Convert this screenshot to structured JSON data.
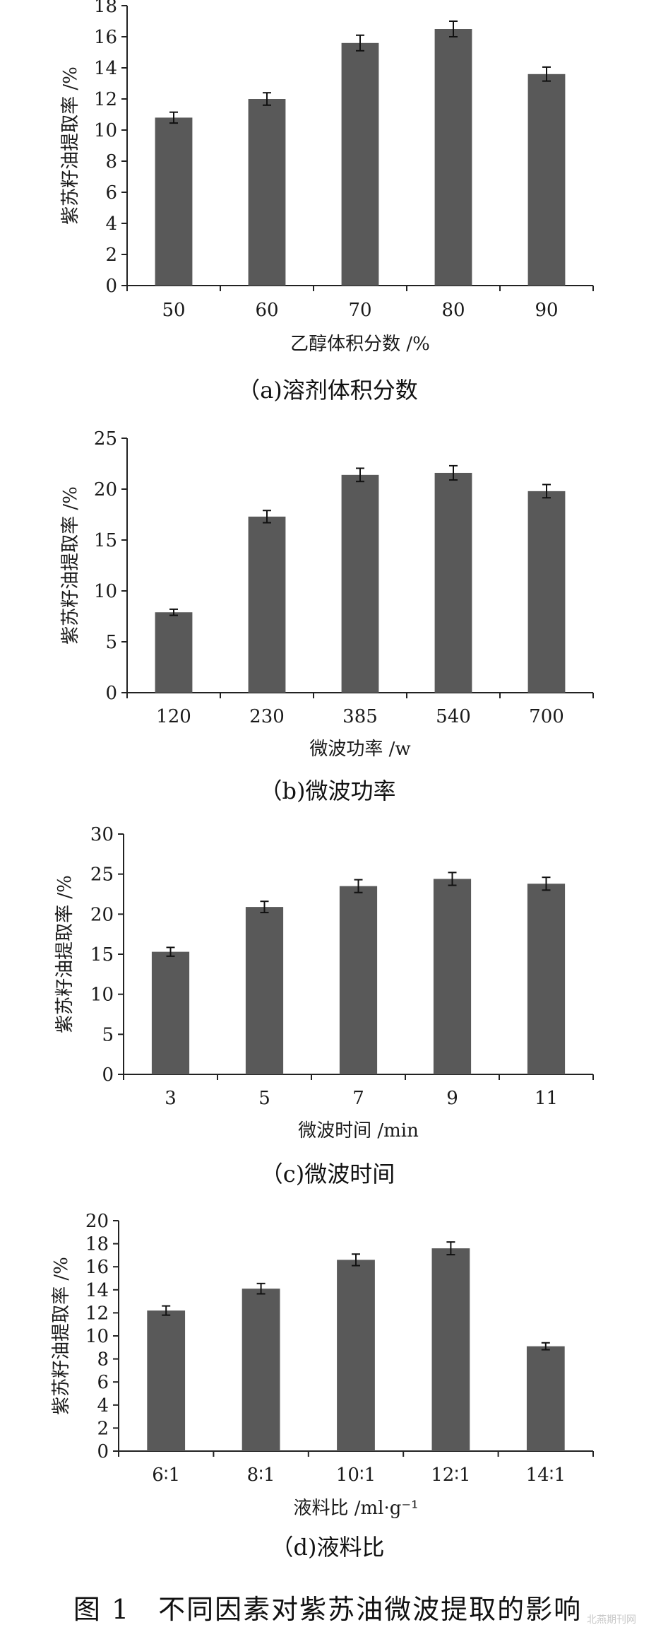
{
  "figure_caption": "图 1　不同因素对紫苏油微波提取的影响",
  "watermark": "北燕期刊网",
  "bar_color": "#595959",
  "chart_data": [
    {
      "type": "bar",
      "ylabel": "紫苏籽油提取率 /%",
      "xlabel": "乙醇体积分数 /%",
      "caption": "（a)溶剂体积分数",
      "categories": [
        "50",
        "60",
        "70",
        "80",
        "90"
      ],
      "values": [
        10.8,
        12.0,
        15.6,
        16.5,
        13.6
      ],
      "errors": [
        0.35,
        0.4,
        0.5,
        0.5,
        0.45
      ],
      "ylim": [
        0,
        18
      ],
      "yticks": [
        0,
        2,
        4,
        6,
        8,
        10,
        12,
        14,
        16,
        18
      ],
      "grid": false,
      "legend": "none"
    },
    {
      "type": "bar",
      "ylabel": "紫苏籽油提取率 /%",
      "xlabel": "微波功率 /w",
      "caption": "（b)微波功率",
      "categories": [
        "120",
        "230",
        "385",
        "540",
        "700"
      ],
      "values": [
        7.9,
        17.3,
        21.4,
        21.6,
        19.8
      ],
      "errors": [
        0.3,
        0.6,
        0.65,
        0.7,
        0.65
      ],
      "ylim": [
        0,
        25
      ],
      "yticks": [
        0,
        5,
        10,
        15,
        20,
        25
      ],
      "grid": false,
      "legend": "none"
    },
    {
      "type": "bar",
      "ylabel": "紫苏籽油提取率 /%",
      "xlabel": "微波时间 /min",
      "caption": "（c)微波时间",
      "categories": [
        "3",
        "5",
        "7",
        "9",
        "11"
      ],
      "values": [
        15.3,
        20.9,
        23.5,
        24.4,
        23.8
      ],
      "errors": [
        0.55,
        0.7,
        0.8,
        0.8,
        0.8
      ],
      "ylim": [
        0,
        30
      ],
      "yticks": [
        0,
        5,
        10,
        15,
        20,
        25,
        30
      ],
      "grid": false,
      "legend": "none"
    },
    {
      "type": "bar",
      "ylabel": "紫苏籽油提取率 /%",
      "xlabel": "液料比 /ml·g⁻¹",
      "caption": "（d)液料比",
      "categories": [
        "6∶1",
        "8∶1",
        "10∶1",
        "12∶1",
        "14∶1"
      ],
      "values": [
        12.2,
        14.1,
        16.6,
        17.6,
        9.1
      ],
      "errors": [
        0.4,
        0.45,
        0.5,
        0.55,
        0.3
      ],
      "ylim": [
        0,
        20
      ],
      "yticks": [
        0,
        2,
        4,
        6,
        8,
        10,
        12,
        14,
        16,
        18,
        20
      ],
      "grid": false,
      "legend": "none"
    }
  ]
}
